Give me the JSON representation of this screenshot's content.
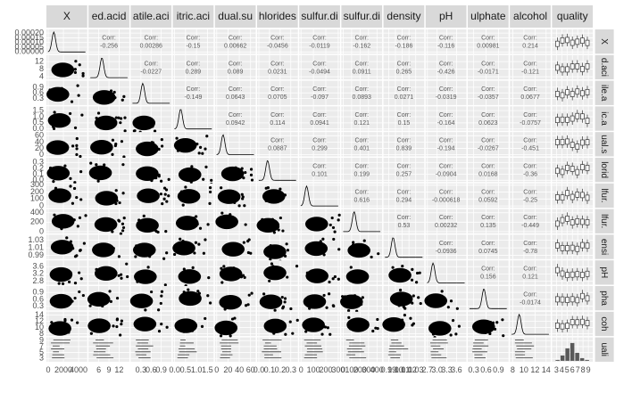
{
  "chart_data": {
    "type": "pairs",
    "corr_label": "Corr:",
    "variables": [
      {
        "header": "X",
        "row_label": "X",
        "xlim": [
          0,
          4900
        ],
        "xticks": [
          0,
          2000,
          4000
        ],
        "ylim": [
          0,
          0.00022
        ],
        "yticks": [
          {
            "value": 0,
            "label": "0.00000"
          },
          {
            "value": 5e-05,
            "label": "0.00005"
          },
          {
            "value": 0.0001,
            "label": "0.00010"
          },
          {
            "value": 0.00015,
            "label": "0.00015"
          },
          {
            "value": 0.0002,
            "label": "0.00020"
          }
        ]
      },
      {
        "header": "ed.acid",
        "row_label": "d.aci",
        "xlim": [
          3.5,
          14.5
        ],
        "xticks": [
          6,
          9,
          12
        ],
        "ylim": [
          3.5,
          14.5
        ],
        "yticks": [
          4,
          8,
          12
        ]
      },
      {
        "header": "atile.aci",
        "row_label": "ile.a",
        "xlim": [
          0.05,
          1.15
        ],
        "xticks": [
          0.3,
          0.6,
          0.9
        ],
        "ylim": [
          0.05,
          1.15
        ],
        "yticks": [
          0.3,
          0.6,
          0.9
        ]
      },
      {
        "header": "itric.aci",
        "row_label": "ic.a",
        "xlim": [
          0,
          1.7
        ],
        "xticks": [
          {
            "value": 0,
            "label": "0.0"
          },
          0.5,
          {
            "value": 1,
            "label": "1.0"
          },
          1.5
        ],
        "ylim": [
          0,
          1.7
        ],
        "yticks": [
          {
            "value": 0,
            "label": "0.0"
          },
          0.5,
          {
            "value": 1,
            "label": "1.0"
          },
          1.5
        ]
      },
      {
        "header": "dual.su",
        "row_label": "ual.s",
        "xlim": [
          0,
          66
        ],
        "xticks": [
          0,
          20,
          40,
          60
        ],
        "ylim": [
          0,
          66
        ],
        "yticks": [
          0,
          20,
          40,
          60
        ]
      },
      {
        "header": "hlorides",
        "row_label": "lorid",
        "xlim": [
          0,
          0.35
        ],
        "xticks": [
          {
            "value": 0,
            "label": "0.0"
          },
          0.1,
          0.2,
          0.3
        ],
        "ylim": [
          0,
          0.35
        ],
        "yticks": [
          {
            "value": 0,
            "label": "0.0"
          },
          0.1,
          0.2,
          0.3
        ]
      },
      {
        "header": "sulfur.di",
        "row_label": "lfur.",
        "xlim": [
          0,
          300
        ],
        "xticks": [
          0,
          100,
          200,
          300
        ],
        "ylim": [
          0,
          300
        ],
        "yticks": [
          0,
          100,
          200,
          300
        ]
      },
      {
        "header": "sulfur.di",
        "row_label": "lfur.",
        "xlim": [
          0,
          440
        ],
        "xticks": [
          0,
          100,
          200,
          300,
          400
        ],
        "ylim": [
          0,
          440
        ],
        "yticks": [
          0,
          200,
          400
        ]
      },
      {
        "header": "density",
        "row_label": "ensi",
        "xlim": [
          0.985,
          1.04
        ],
        "xticks": [
          0.99,
          {
            "value": 1,
            "label": "1.00"
          },
          1.01,
          1.02,
          1.03
        ],
        "ylim": [
          0.985,
          1.04
        ],
        "yticks": [
          0.99,
          1.01,
          1.03
        ]
      },
      {
        "header": "pH",
        "row_label": "pH",
        "xlim": [
          2.7,
          3.85
        ],
        "xticks": [
          2.7,
          {
            "value": 3,
            "label": "3.0"
          },
          3.3,
          3.6
        ],
        "ylim": [
          2.7,
          3.85
        ],
        "yticks": [
          2.8,
          3.2,
          3.6
        ]
      },
      {
        "header": "ulphate",
        "row_label": "pha",
        "xlim": [
          0.2,
          1.1
        ],
        "xticks": [
          0.3,
          0.6,
          0.9
        ],
        "ylim": [
          0.2,
          1.1
        ],
        "yticks": [
          0.3,
          0.6,
          0.9
        ]
      },
      {
        "header": "alcohol",
        "row_label": "coh",
        "xlim": [
          7.8,
          14.5
        ],
        "xticks": [
          8,
          10,
          12,
          14
        ],
        "ylim": [
          7.8,
          14.5
        ],
        "yticks": [
          8,
          10,
          12,
          14
        ]
      },
      {
        "header": "quality",
        "row_label": "uali",
        "xlim": [
          2.5,
          9.5
        ],
        "xticks": [
          3,
          4,
          5,
          6,
          7,
          8,
          9
        ],
        "ylim": [
          2.5,
          9.5
        ],
        "yticks": [
          3,
          5,
          7,
          9
        ]
      }
    ],
    "correlations": [
      [
        -0.256,
        0.00286,
        -0.15,
        0.00662,
        -0.0456,
        -0.0119,
        -0.162,
        -0.186,
        -0.116,
        0.00981,
        0.214
      ],
      [
        -0.0227,
        0.289,
        0.089,
        0.0231,
        -0.0494,
        0.0911,
        0.265,
        -0.426,
        -0.0171,
        -0.121
      ],
      [
        -0.149,
        0.0643,
        0.0705,
        -0.097,
        0.0893,
        0.0271,
        -0.0319,
        -0.0357,
        0.0677
      ],
      [
        0.0942,
        0.114,
        0.0941,
        0.121,
        0.15,
        -0.164,
        0.0623,
        -0.0757
      ],
      [
        0.0887,
        0.299,
        0.401,
        0.839,
        -0.194,
        -0.0267,
        -0.451
      ],
      [
        0.101,
        0.199,
        0.257,
        -0.0904,
        0.0168,
        -0.36
      ],
      [
        0.616,
        0.294,
        -0.000618,
        0.0592,
        -0.25
      ],
      [
        0.53,
        0.00232,
        0.135,
        -0.449
      ],
      [
        -0.0936,
        0.0745,
        -0.78
      ],
      [
        0.156,
        0.121
      ],
      [
        -0.0174
      ]
    ]
  }
}
